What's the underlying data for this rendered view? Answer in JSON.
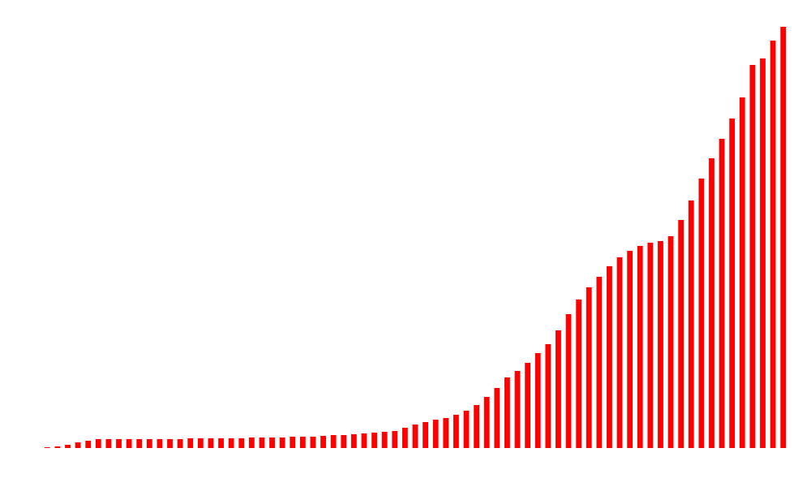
{
  "chart_data": {
    "type": "bar",
    "color": "#ff0000",
    "categories": [
      null,
      null,
      null,
      null,
      null,
      null,
      null,
      null,
      null,
      null,
      null,
      null,
      null,
      null,
      null,
      null,
      null,
      null,
      null,
      null,
      null,
      null,
      null,
      null,
      null,
      null,
      null,
      null,
      null,
      null,
      null,
      null,
      null,
      null,
      null,
      null,
      null,
      null,
      null,
      null,
      null,
      null,
      null,
      null,
      null,
      null,
      null,
      null,
      null,
      null,
      null,
      null,
      null,
      null,
      null,
      null,
      null,
      null,
      null,
      null,
      null,
      null,
      null,
      null,
      null,
      null,
      null,
      null,
      null,
      null,
      null,
      null,
      null
    ],
    "values": [
      1,
      2,
      4,
      7,
      9,
      11,
      11,
      11,
      11,
      11,
      11,
      11,
      11,
      11,
      12,
      12,
      12,
      12,
      12,
      12,
      13,
      13,
      13,
      13,
      14,
      14,
      14,
      15,
      16,
      16,
      17,
      18,
      19,
      20,
      21,
      25,
      29,
      32,
      35,
      37,
      41,
      46,
      53,
      63,
      74,
      87,
      95,
      105,
      117,
      128,
      145,
      165,
      183,
      198,
      211,
      224,
      235,
      243,
      249,
      253,
      255,
      261,
      281,
      305,
      332,
      357,
      381,
      406,
      432,
      472,
      480,
      502,
      519
    ],
    "ylim": [
      0,
      520
    ]
  }
}
